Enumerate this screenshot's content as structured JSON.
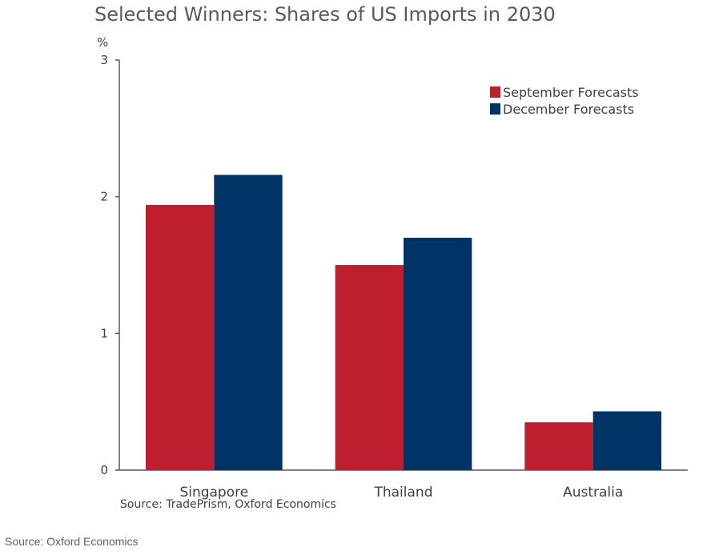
{
  "title": "Selected Winners: Shares of US Imports in 2030",
  "source_chart": "Source: TradePrism, Oxford Economics",
  "source_page": "Source: Oxford Economics",
  "chart_data": {
    "type": "bar",
    "title": "Selected Winners: Shares of US Imports in 2030",
    "ylabel": "%",
    "xlabel": "",
    "categories": [
      "Singapore",
      "Thailand",
      "Australia"
    ],
    "series": [
      {
        "name": "September Forecasts",
        "color": "#be1e2d",
        "values": [
          1.94,
          1.5,
          0.35
        ]
      },
      {
        "name": "December Forecasts",
        "color": "#003366",
        "values": [
          2.16,
          1.7,
          0.43
        ]
      }
    ],
    "ylim": [
      0,
      3
    ],
    "yticks": [
      0,
      1,
      2,
      3
    ],
    "grid": false,
    "legend": "top-right"
  }
}
